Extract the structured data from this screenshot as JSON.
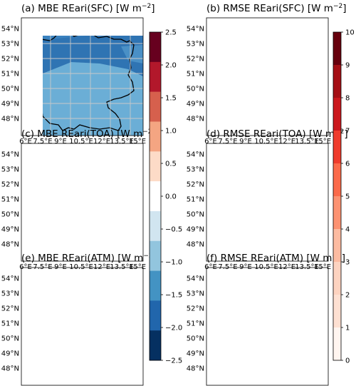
{
  "panels": [
    {
      "id": "a",
      "title": "(a) MBE REari(SFC) [W m",
      "title_sup": "−2",
      "title_end": "]",
      "colorbar_group": "mbe",
      "regions": [
        {
          "name": "north-band",
          "color": "#3a82bf"
        },
        {
          "name": "main-band",
          "color": "#2f74b3"
        },
        {
          "name": "south-band",
          "color": "#6baed6"
        },
        {
          "name": "east-patch",
          "color": "#4a90c6"
        }
      ]
    },
    {
      "id": "b",
      "title": "(b) RMSE REari(SFC) [W m",
      "title_sup": "−2",
      "title_end": "]",
      "colorbar_group": "rmse",
      "regions": [
        {
          "name": "base",
          "color": "#d7282d"
        },
        {
          "name": "northwest-patch",
          "color": "#e03d35"
        },
        {
          "name": "southeast-patch",
          "color": "#c81f25"
        }
      ]
    },
    {
      "id": "c",
      "title": "(c) MBE REari(TOA) [W m",
      "title_sup": "−2",
      "title_end": "]",
      "colorbar_group": "mbe",
      "regions": [
        {
          "name": "base",
          "color": "#f4a582"
        },
        {
          "name": "north-strip",
          "color": "#fde0d2"
        }
      ]
    },
    {
      "id": "d",
      "title": "(d) RMSE REari(TOA) [W m",
      "title_sup": "−2",
      "title_end": "]",
      "colorbar_group": "rmse",
      "regions": [
        {
          "name": "base",
          "color": "#f7977b"
        }
      ]
    },
    {
      "id": "e",
      "title": "(e) MBE REari(ATM) [W m",
      "title_sup": "−2",
      "title_end": "]",
      "colorbar_group": "mbe",
      "regions": [
        {
          "name": "base",
          "color": "#a81528"
        },
        {
          "name": "north-band",
          "color": "#c9313a"
        },
        {
          "name": "south-band",
          "color": "#d6474a"
        }
      ]
    },
    {
      "id": "f",
      "title": "(f) RMSE REari(ATM) [W m",
      "title_sup": "−2",
      "title_end": "]",
      "colorbar_group": "rmse",
      "regions": [
        {
          "name": "base",
          "color": "#cd2025"
        },
        {
          "name": "north-band",
          "color": "#d83a33"
        },
        {
          "name": "south-strip",
          "color": "#b5171f"
        }
      ]
    }
  ],
  "lat_labels": [
    "54°N",
    "53°N",
    "52°N",
    "51°N",
    "50°N",
    "49°N",
    "48°N"
  ],
  "lon_labels": [
    "6°E",
    "7.5°E",
    "9°E",
    "10.5°E",
    "12°E",
    "13.5°E",
    "15°E"
  ],
  "colorbars": {
    "mbe": {
      "ticks": [
        "2.5",
        "2.0",
        "1.5",
        "1.0",
        "0.5",
        "0.0",
        "−0.5",
        "−1.0",
        "−1.5",
        "−2.0",
        "−2.5"
      ],
      "colors": [
        "#67001f",
        "#b2182b",
        "#d6604d",
        "#f4a582",
        "#fddbc7",
        "#ffffff",
        "#d1e5f0",
        "#92c5de",
        "#4393c3",
        "#2166ac",
        "#053061"
      ]
    },
    "rmse": {
      "ticks": [
        "10",
        "9",
        "8",
        "7",
        "6",
        "5",
        "4",
        "3",
        "2",
        "1",
        "0"
      ],
      "colors": [
        "#67000d",
        "#a50f15",
        "#cb181d",
        "#ef3b2c",
        "#fb6a4a",
        "#fc9272",
        "#fcbba1",
        "#fdd3c0",
        "#fee0d2",
        "#fff5f0"
      ]
    }
  }
}
